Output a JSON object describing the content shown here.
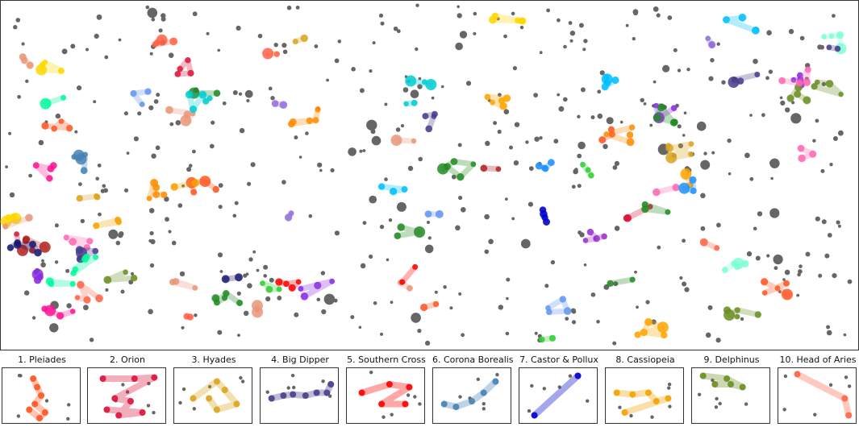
{
  "chart_data": {
    "type": "scatter",
    "title": "",
    "xlabel": "",
    "ylabel": "",
    "grid": false,
    "axes_ticks": false,
    "background_stars_color": "#666666",
    "background_stars_count": 420,
    "constellations": [
      {
        "name": "Pleiades",
        "color": "#ff5722",
        "points": [
          [
            0.4,
            0.2
          ],
          [
            0.45,
            0.35
          ],
          [
            0.5,
            0.5
          ],
          [
            0.42,
            0.65
          ],
          [
            0.55,
            0.8
          ],
          [
            0.48,
            0.9
          ],
          [
            0.35,
            0.75
          ]
        ]
      },
      {
        "name": "Orion",
        "color": "#dc143c",
        "points": [
          [
            0.2,
            0.2
          ],
          [
            0.6,
            0.2
          ],
          [
            0.85,
            0.18
          ],
          [
            0.35,
            0.55
          ],
          [
            0.55,
            0.6
          ],
          [
            0.4,
            0.85
          ],
          [
            0.7,
            0.8
          ],
          [
            0.25,
            0.75
          ]
        ]
      },
      {
        "name": "Hyades",
        "color": "#daa520",
        "points": [
          [
            0.25,
            0.55
          ],
          [
            0.55,
            0.25
          ],
          [
            0.65,
            0.4
          ],
          [
            0.8,
            0.65
          ],
          [
            0.55,
            0.75
          ],
          [
            0.45,
            0.55
          ]
        ]
      },
      {
        "name": "Big Dipper",
        "color": "#483d8b",
        "points": [
          [
            0.15,
            0.55
          ],
          [
            0.3,
            0.5
          ],
          [
            0.42,
            0.48
          ],
          [
            0.58,
            0.5
          ],
          [
            0.72,
            0.45
          ],
          [
            0.85,
            0.45
          ],
          [
            0.9,
            0.3
          ]
        ]
      },
      {
        "name": "Southern Cross",
        "color": "#ff0000",
        "points": [
          [
            0.2,
            0.45
          ],
          [
            0.55,
            0.3
          ],
          [
            0.8,
            0.35
          ],
          [
            0.45,
            0.65
          ],
          [
            0.75,
            0.65
          ]
        ]
      },
      {
        "name": "Corona Borealis",
        "color": "#4682b4",
        "points": [
          [
            0.15,
            0.65
          ],
          [
            0.3,
            0.7
          ],
          [
            0.5,
            0.6
          ],
          [
            0.65,
            0.45
          ],
          [
            0.8,
            0.25
          ]
        ]
      },
      {
        "name": "Castor & Pollux",
        "color": "#0000cd",
        "points": [
          [
            0.2,
            0.85
          ],
          [
            0.75,
            0.15
          ]
        ]
      },
      {
        "name": "Cassiopeia",
        "color": "#f4a300",
        "points": [
          [
            0.15,
            0.45
          ],
          [
            0.35,
            0.48
          ],
          [
            0.55,
            0.45
          ],
          [
            0.65,
            0.6
          ],
          [
            0.8,
            0.55
          ],
          [
            0.25,
            0.8
          ]
        ]
      },
      {
        "name": "Delphinus",
        "color": "#6b8e23",
        "points": [
          [
            0.15,
            0.15
          ],
          [
            0.45,
            0.2
          ],
          [
            0.65,
            0.35
          ],
          [
            0.5,
            0.3
          ],
          [
            0.3,
            0.3
          ]
        ]
      },
      {
        "name": "Head of Aries",
        "color": "#ff6347",
        "points": [
          [
            0.25,
            0.12
          ],
          [
            0.85,
            0.55
          ],
          [
            0.9,
            0.85
          ]
        ]
      }
    ]
  },
  "panels": [
    {
      "title": "1. Pleiades"
    },
    {
      "title": "2. Orion"
    },
    {
      "title": "3. Hyades"
    },
    {
      "title": "4. Big Dipper"
    },
    {
      "title": "5. Southern Cross"
    },
    {
      "title": "6. Corona Borealis"
    },
    {
      "title": "7. Castor & Pollux"
    },
    {
      "title": "8. Cassiopeia"
    },
    {
      "title": "9. Delphinus"
    },
    {
      "title": "10. Head of Aries"
    }
  ]
}
